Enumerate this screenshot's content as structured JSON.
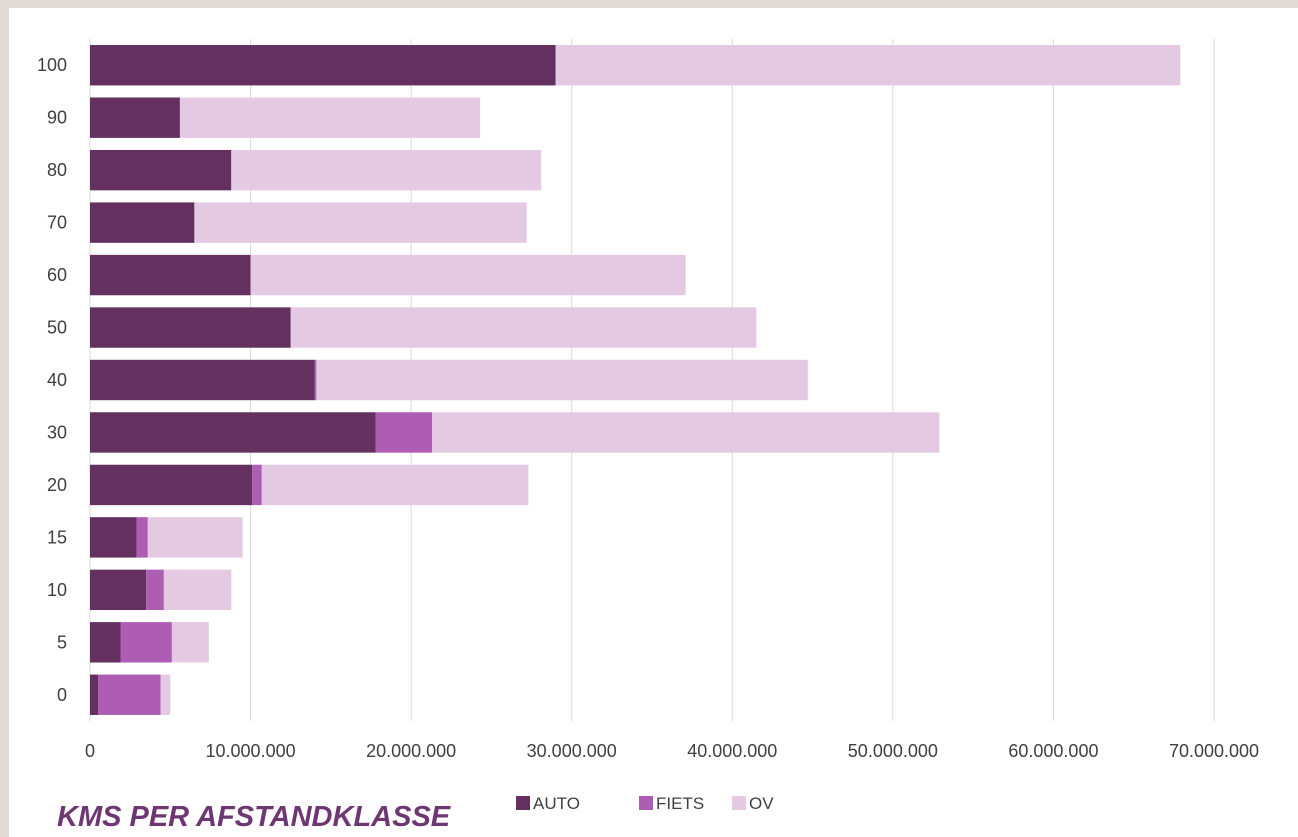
{
  "chart_data": {
    "type": "bar",
    "orientation": "horizontal",
    "stacked": true,
    "title": "KMS PER AFSTANDKLASSE",
    "categories": [
      "100",
      "90",
      "80",
      "70",
      "60",
      "50",
      "40",
      "30",
      "20",
      "15",
      "10",
      "5",
      "0"
    ],
    "series": [
      {
        "name": "AUTO",
        "color": "#63305f",
        "values": [
          29000000,
          5600000,
          8800000,
          6500000,
          10000000,
          12500000,
          14000000,
          17800000,
          10100000,
          2900000,
          3500000,
          1900000,
          500000
        ]
      },
      {
        "name": "FIETS",
        "color": "#ad5db2",
        "values": [
          0,
          0,
          0,
          0,
          0,
          0,
          100000,
          3500000,
          600000,
          700000,
          1100000,
          3200000,
          3900000
        ]
      },
      {
        "name": "OV",
        "color": "#e4c9e3",
        "values": [
          38900000,
          18700000,
          19300000,
          20700000,
          27100000,
          29000000,
          30600000,
          31600000,
          16600000,
          5900000,
          4200000,
          2300000,
          600000
        ]
      }
    ],
    "xlim": [
      0,
      70000000
    ],
    "x_ticks": [
      "0",
      "10.000.000",
      "20.000.000",
      "30.000.000",
      "40.000.000",
      "50.000.000",
      "60.000.000",
      "70.000.000"
    ],
    "gridlines": true,
    "legend_position": "bottom-center"
  }
}
